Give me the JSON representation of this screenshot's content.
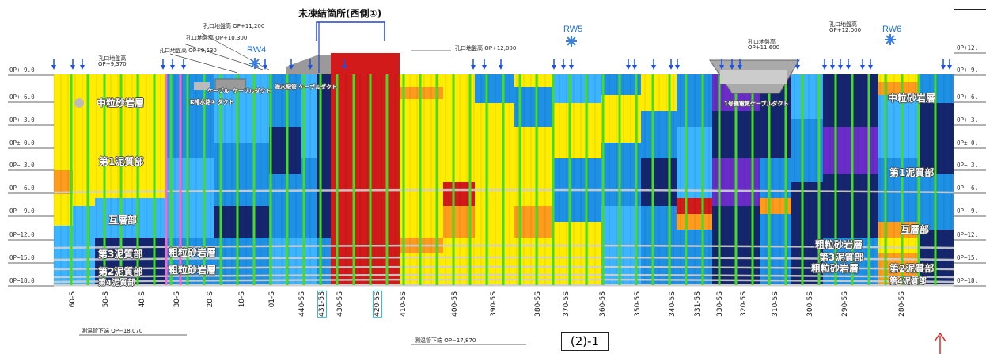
{
  "colors": {
    "blue": "#1e90e6",
    "light_blue": "#3cb4ff",
    "navy": "#16266e",
    "yellow": "#ffec00",
    "orange": "#ff9c1e",
    "red": "#d21a1a",
    "purple": "#6a2cc8",
    "white_band": "#cfcfcf",
    "green_line": "#44dd22",
    "pink_line": "#ff66cc",
    "arrow_blue": "#1e50e6"
  },
  "title": "未凍結箇所(西側①)",
  "section_label": "(2)-1",
  "level_labels_left": [
    "OP+ 9.0",
    "OP+ 6.0",
    "OP+ 3.0",
    "OP± 0.0",
    "OP− 3.0",
    "OP− 6.0",
    "OP− 9.0",
    "OP−12.0",
    "OP−15.0",
    "OP−18.0"
  ],
  "level_labels_right": [
    "OP+12.",
    "OP+ 9.",
    "OP+ 6.",
    "OP+ 3.",
    "OP± 0.",
    "OP− 3.",
    "OP− 6.",
    "OP− 9.",
    "OP−12.",
    "OP−15.",
    "OP−18."
  ],
  "annotations": {
    "ground_left": "孔口地盤高\nOP+9,370",
    "ground_530": "孔口地盤高 OP+9,530",
    "ground_300": "孔口地盤高 OP+10,300",
    "ground_200": "孔口地盤高 OP+11,200",
    "ground_mid": "孔口地盤高 OP+12,000",
    "ground_600": "孔口地盤高\nOP+11,600",
    "ground_right": "孔口地盤高\nOP+12,000",
    "bottom_left": "測温管下端 OP−18,070",
    "bottom_mid": "測温管下端 OP−17,870"
  },
  "rw_labels": [
    "RW4",
    "RW5",
    "RW6"
  ],
  "layer_labels": {
    "sand1": "中粒砂岩層",
    "mud1_left": "第1泥質部",
    "gaso_left": "互層部",
    "mud3_left": "第3泥質部",
    "mud2_left": "第2泥質部",
    "mud4_left": "第4泥質部",
    "coarse1_left": "粗粒砂岩層",
    "coarse2_left": "粗粒砂岩層",
    "sand_right": "中粒砂岩層",
    "mud1_right": "第1泥質部",
    "gaso_right": "互層部",
    "coarse_r1": "粗粒砂岩層",
    "mud3_right": "第3泥質部",
    "coarse_r2": "粗粒砂岩層",
    "mud2_right": "第2泥質部",
    "mud4_right": "第4泥質部"
  },
  "structure_labels": {
    "k_drain": "K排水路① ダクト",
    "cable": "ケーブル",
    "cable_duct_left": "ケーブルダクト",
    "seawater_cable": "海水配管 ケーブルダクト",
    "u1_cable": "1号機電気ケーブルダクト"
  },
  "boreholes": [
    {
      "label": "60-S",
      "highlight": false
    },
    {
      "label": "50-S",
      "highlight": false
    },
    {
      "label": "40-S",
      "highlight": false
    },
    {
      "label": "30-S",
      "highlight": false
    },
    {
      "label": "20-S",
      "highlight": false
    },
    {
      "label": "10-S",
      "highlight": false
    },
    {
      "label": "01-S",
      "highlight": false
    },
    {
      "label": "440-5S",
      "highlight": false
    },
    {
      "label": "431-5S",
      "highlight": true
    },
    {
      "label": "430-5S",
      "highlight": false
    },
    {
      "label": "420-5S",
      "highlight": true
    },
    {
      "label": "410-5S",
      "highlight": false
    },
    {
      "label": "400-5S",
      "highlight": false
    },
    {
      "label": "390-5S",
      "highlight": false
    },
    {
      "label": "380-5S",
      "highlight": false
    },
    {
      "label": "370-5S",
      "highlight": false
    },
    {
      "label": "360-5S",
      "highlight": false
    },
    {
      "label": "350-5S",
      "highlight": false
    },
    {
      "label": "340-5S",
      "highlight": false
    },
    {
      "label": "331-5S",
      "highlight": false
    },
    {
      "label": "330-5S",
      "highlight": false
    },
    {
      "label": "320-5S",
      "highlight": false
    },
    {
      "label": "310-5S",
      "highlight": false
    },
    {
      "label": "300-5S",
      "highlight": false
    },
    {
      "label": "290-5S",
      "highlight": false
    },
    {
      "label": "280-5S",
      "highlight": false
    }
  ]
}
